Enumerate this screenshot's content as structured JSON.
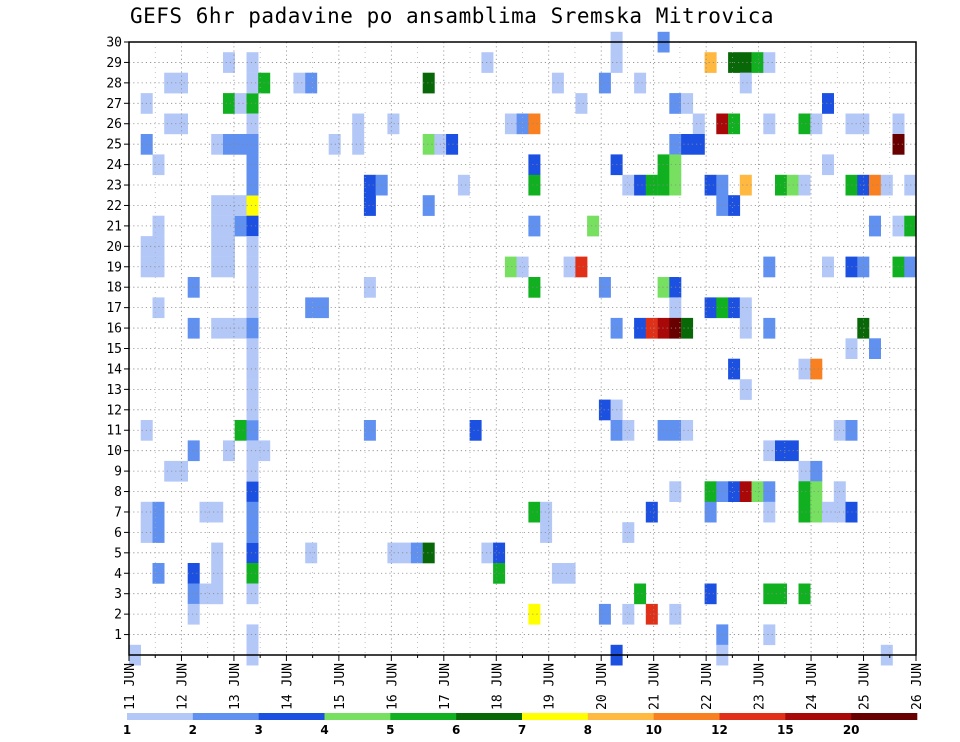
{
  "chart_data": {
    "type": "heatmap",
    "title": "GEFS 6hr padavine po ansamblima Sremska Mitrovica",
    "x_ticks": [
      "11 JUN",
      "12 JUN",
      "13 JUN",
      "14 JUN",
      "15 JUN",
      "16 JUN",
      "17 JUN",
      "18 JUN",
      "19 JUN",
      "20 JUN",
      "21 JUN",
      "22 JUN",
      "23 JUN",
      "24 JUN",
      "25 JUN",
      "26 JUN"
    ],
    "y_ticks": [
      1,
      2,
      3,
      4,
      5,
      6,
      7,
      8,
      9,
      10,
      11,
      12,
      13,
      14,
      15,
      16,
      17,
      18,
      19,
      20,
      21,
      22,
      23,
      24,
      25,
      26,
      27,
      28,
      29,
      30
    ],
    "x_range": [
      "11 JUN 00z",
      "26 JUN 00z"
    ],
    "x_step_hours": 6,
    "y_range": [
      0,
      30
    ],
    "grid": true,
    "legend": {
      "placement": "bottom",
      "colors": [
        "#b4c8f8",
        "#6090f0",
        "#1c50e0",
        "#78e060",
        "#10b020",
        "#086808",
        "#ffff00",
        "#ffb840",
        "#f88020",
        "#e03018",
        "#a80808",
        "#680000"
      ],
      "labels": [
        "1",
        "2",
        "3",
        "4",
        "5",
        "6",
        "7",
        "8",
        "10",
        "12",
        "15",
        "20"
      ]
    },
    "cells": [
      [
        0,
        0,
        1
      ],
      [
        1,
        7,
        1
      ],
      [
        1,
        6,
        1
      ],
      [
        1,
        11,
        1
      ],
      [
        1,
        19,
        1
      ],
      [
        1,
        20,
        1
      ],
      [
        1,
        25,
        2
      ],
      [
        1,
        27,
        1
      ],
      [
        2,
        6,
        2
      ],
      [
        2,
        7,
        2
      ],
      [
        2,
        4,
        2
      ],
      [
        2,
        17,
        1
      ],
      [
        2,
        21,
        1
      ],
      [
        2,
        20,
        1
      ],
      [
        2,
        19,
        1
      ],
      [
        2,
        24,
        1
      ],
      [
        3,
        28,
        1
      ],
      [
        3,
        26,
        1
      ],
      [
        3,
        9,
        1
      ],
      [
        4,
        28,
        1
      ],
      [
        4,
        26,
        1
      ],
      [
        4,
        9,
        1
      ],
      [
        5,
        4,
        3
      ],
      [
        5,
        3,
        2
      ],
      [
        5,
        2,
        1
      ],
      [
        5,
        10,
        2
      ],
      [
        5,
        16,
        2
      ],
      [
        5,
        18,
        2
      ],
      [
        6,
        7,
        1
      ],
      [
        6,
        3,
        1
      ],
      [
        7,
        7,
        1
      ],
      [
        7,
        4,
        1
      ],
      [
        7,
        5,
        1
      ],
      [
        7,
        3,
        1
      ],
      [
        7,
        25,
        1
      ],
      [
        7,
        19,
        1
      ],
      [
        7,
        20,
        1
      ],
      [
        7,
        21,
        1
      ],
      [
        7,
        22,
        1
      ],
      [
        7,
        16,
        1
      ],
      [
        8,
        10,
        1
      ],
      [
        8,
        27,
        5
      ],
      [
        8,
        25,
        2
      ],
      [
        8,
        16,
        1
      ],
      [
        8,
        29,
        1
      ],
      [
        8,
        22,
        1
      ],
      [
        8,
        21,
        1
      ],
      [
        8,
        20,
        1
      ],
      [
        8,
        19,
        1
      ],
      [
        9,
        25,
        2
      ],
      [
        9,
        27,
        1
      ],
      [
        9,
        21,
        2
      ],
      [
        9,
        22,
        1
      ],
      [
        9,
        16,
        1
      ],
      [
        9,
        11,
        5
      ],
      [
        10,
        22,
        7
      ],
      [
        10,
        27,
        5
      ],
      [
        10,
        21,
        3
      ],
      [
        10,
        11,
        2
      ],
      [
        10,
        8,
        3
      ],
      [
        10,
        5,
        3
      ],
      [
        10,
        4,
        5
      ],
      [
        10,
        3,
        1
      ],
      [
        10,
        0,
        1
      ],
      [
        10,
        1,
        1
      ],
      [
        10,
        29,
        1
      ],
      [
        10,
        28,
        1
      ],
      [
        10,
        26,
        1
      ],
      [
        10,
        25,
        2
      ],
      [
        10,
        24,
        2
      ],
      [
        10,
        23,
        2
      ],
      [
        10,
        20,
        1
      ],
      [
        10,
        19,
        1
      ],
      [
        10,
        18,
        1
      ],
      [
        10,
        17,
        1
      ],
      [
        10,
        16,
        2
      ],
      [
        10,
        15,
        1
      ],
      [
        10,
        14,
        1
      ],
      [
        10,
        13,
        1
      ],
      [
        10,
        12,
        1
      ],
      [
        10,
        10,
        1
      ],
      [
        10,
        9,
        1
      ],
      [
        10,
        7,
        2
      ],
      [
        10,
        6,
        2
      ],
      [
        11,
        28,
        5
      ],
      [
        11,
        10,
        1
      ],
      [
        14,
        28,
        1
      ],
      [
        15,
        28,
        2
      ],
      [
        15,
        17,
        2
      ],
      [
        15,
        5,
        1
      ],
      [
        16,
        17,
        2
      ],
      [
        17,
        25,
        1
      ],
      [
        19,
        26,
        1
      ],
      [
        19,
        25,
        1
      ],
      [
        20,
        23,
        3
      ],
      [
        20,
        22,
        3
      ],
      [
        20,
        11,
        2
      ],
      [
        20,
        18,
        1
      ],
      [
        21,
        23,
        2
      ],
      [
        22,
        26,
        1
      ],
      [
        22,
        5,
        1
      ],
      [
        23,
        5,
        1
      ],
      [
        24,
        5,
        2
      ],
      [
        25,
        5,
        6
      ],
      [
        25,
        28,
        6
      ],
      [
        25,
        25,
        4
      ],
      [
        25,
        22,
        2
      ],
      [
        26,
        25,
        1
      ],
      [
        27,
        25,
        3
      ],
      [
        28,
        23,
        1
      ],
      [
        29,
        11,
        3
      ],
      [
        30,
        29,
        1
      ],
      [
        30,
        5,
        1
      ],
      [
        31,
        5,
        3
      ],
      [
        31,
        4,
        5
      ],
      [
        32,
        26,
        1
      ],
      [
        32,
        19,
        4
      ],
      [
        33,
        26,
        2
      ],
      [
        33,
        19,
        1
      ],
      [
        34,
        26,
        9
      ],
      [
        34,
        24,
        3
      ],
      [
        34,
        23,
        5
      ],
      [
        34,
        21,
        2
      ],
      [
        34,
        18,
        5
      ],
      [
        34,
        7,
        5
      ],
      [
        34,
        2,
        7
      ],
      [
        35,
        7,
        1
      ],
      [
        35,
        6,
        1
      ],
      [
        36,
        28,
        1
      ],
      [
        36,
        4,
        1
      ],
      [
        37,
        19,
        1
      ],
      [
        37,
        4,
        1
      ],
      [
        38,
        27,
        1
      ],
      [
        38,
        19,
        10
      ],
      [
        39,
        21,
        4
      ],
      [
        40,
        28,
        2
      ],
      [
        40,
        18,
        2
      ],
      [
        40,
        12,
        3
      ],
      [
        40,
        2,
        2
      ],
      [
        41,
        30,
        1
      ],
      [
        41,
        29,
        1
      ],
      [
        41,
        24,
        3
      ],
      [
        41,
        16,
        2
      ],
      [
        41,
        12,
        1
      ],
      [
        41,
        11,
        2
      ],
      [
        41,
        0,
        3
      ],
      [
        42,
        23,
        1
      ],
      [
        42,
        11,
        1
      ],
      [
        42,
        6,
        1
      ],
      [
        42,
        2,
        1
      ],
      [
        43,
        28,
        1
      ],
      [
        43,
        23,
        3
      ],
      [
        43,
        16,
        3
      ],
      [
        43,
        3,
        5
      ],
      [
        44,
        23,
        5
      ],
      [
        44,
        16,
        10
      ],
      [
        44,
        7,
        3
      ],
      [
        44,
        2,
        10
      ],
      [
        45,
        30,
        2
      ],
      [
        45,
        23,
        5
      ],
      [
        45,
        24,
        5
      ],
      [
        45,
        18,
        4
      ],
      [
        45,
        16,
        11
      ],
      [
        45,
        11,
        2
      ],
      [
        46,
        27,
        2
      ],
      [
        46,
        25,
        2
      ],
      [
        46,
        24,
        4
      ],
      [
        46,
        23,
        4
      ],
      [
        46,
        18,
        3
      ],
      [
        46,
        17,
        1
      ],
      [
        46,
        16,
        12
      ],
      [
        46,
        11,
        2
      ],
      [
        46,
        8,
        1
      ],
      [
        46,
        2,
        1
      ],
      [
        47,
        27,
        1
      ],
      [
        47,
        25,
        3
      ],
      [
        47,
        16,
        6
      ],
      [
        47,
        11,
        1
      ],
      [
        48,
        26,
        1
      ],
      [
        48,
        25,
        3
      ],
      [
        49,
        29,
        8
      ],
      [
        49,
        23,
        3
      ],
      [
        49,
        17,
        3
      ],
      [
        49,
        8,
        5
      ],
      [
        49,
        7,
        2
      ],
      [
        49,
        3,
        3
      ],
      [
        50,
        26,
        11
      ],
      [
        50,
        23,
        2
      ],
      [
        50,
        22,
        2
      ],
      [
        50,
        17,
        5
      ],
      [
        50,
        8,
        2
      ],
      [
        50,
        1,
        2
      ],
      [
        50,
        0,
        1
      ],
      [
        51,
        29,
        6
      ],
      [
        51,
        26,
        5
      ],
      [
        51,
        22,
        3
      ],
      [
        51,
        17,
        3
      ],
      [
        51,
        14,
        3
      ],
      [
        51,
        8,
        3
      ],
      [
        52,
        29,
        6
      ],
      [
        52,
        28,
        1
      ],
      [
        52,
        23,
        8
      ],
      [
        52,
        17,
        1
      ],
      [
        52,
        16,
        1
      ],
      [
        52,
        13,
        1
      ],
      [
        52,
        8,
        11
      ],
      [
        53,
        29,
        5
      ],
      [
        53,
        8,
        4
      ],
      [
        54,
        29,
        1
      ],
      [
        54,
        26,
        1
      ],
      [
        54,
        19,
        2
      ],
      [
        54,
        16,
        2
      ],
      [
        54,
        10,
        1
      ],
      [
        54,
        8,
        2
      ],
      [
        54,
        7,
        1
      ],
      [
        54,
        3,
        5
      ],
      [
        54,
        1,
        1
      ],
      [
        55,
        23,
        5
      ],
      [
        55,
        10,
        3
      ],
      [
        55,
        3,
        5
      ],
      [
        56,
        23,
        4
      ],
      [
        56,
        10,
        3
      ],
      [
        57,
        26,
        5
      ],
      [
        57,
        23,
        1
      ],
      [
        57,
        14,
        1
      ],
      [
        57,
        9,
        1
      ],
      [
        57,
        8,
        5
      ],
      [
        57,
        7,
        5
      ],
      [
        57,
        3,
        5
      ],
      [
        58,
        26,
        1
      ],
      [
        58,
        14,
        9
      ],
      [
        58,
        9,
        2
      ],
      [
        58,
        8,
        4
      ],
      [
        58,
        7,
        4
      ],
      [
        59,
        27,
        3
      ],
      [
        59,
        24,
        1
      ],
      [
        59,
        19,
        1
      ],
      [
        59,
        7,
        1
      ],
      [
        60,
        11,
        1
      ],
      [
        60,
        8,
        1
      ],
      [
        60,
        7,
        1
      ],
      [
        61,
        26,
        1
      ],
      [
        61,
        23,
        5
      ],
      [
        61,
        19,
        3
      ],
      [
        61,
        15,
        1
      ],
      [
        61,
        11,
        2
      ],
      [
        61,
        7,
        3
      ],
      [
        62,
        26,
        1
      ],
      [
        62,
        23,
        3
      ],
      [
        62,
        19,
        2
      ],
      [
        62,
        16,
        6
      ],
      [
        63,
        23,
        9
      ],
      [
        63,
        21,
        2
      ],
      [
        63,
        15,
        2
      ],
      [
        64,
        23,
        1
      ],
      [
        64,
        0,
        1
      ],
      [
        65,
        26,
        1
      ],
      [
        65,
        25,
        12
      ],
      [
        65,
        21,
        1
      ],
      [
        65,
        19,
        5
      ],
      [
        66,
        23,
        1
      ],
      [
        66,
        21,
        5
      ],
      [
        66,
        19,
        2
      ]
    ]
  }
}
